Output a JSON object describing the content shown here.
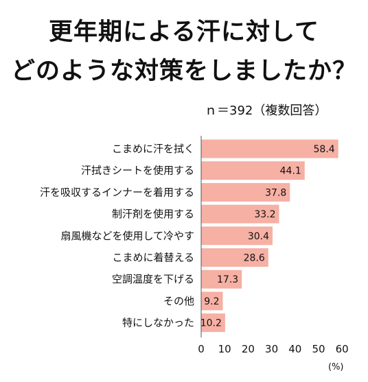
{
  "title_lines": [
    "更年期による汗に対して",
    "どのような対策をしましたか？"
  ],
  "subtitle": "ｎ＝392（複数回答）",
  "unit": "(%)",
  "colors": {
    "bar": "#f6b0a4",
    "axis": "#555555",
    "text": "#111111"
  },
  "chart_data": {
    "type": "bar",
    "orientation": "horizontal",
    "categories": [
      "こまめに汗を拭く",
      "汗拭きシートを使用する",
      "汗を吸収するインナーを着用する",
      "制汗剤を使用する",
      "扇風機などを使用して冷やす",
      "こまめに着替える",
      "空調温度を下げる",
      "その他",
      "特にしなかった"
    ],
    "values": [
      58.4,
      44.1,
      37.8,
      33.2,
      30.4,
      28.6,
      17.3,
      9.2,
      10.2
    ],
    "value_labels": [
      "58.4",
      "44.1",
      "37.8",
      "33.2",
      "30.4",
      "28.6",
      "17.3",
      "9.2",
      "10.2"
    ],
    "xlim": [
      0,
      60
    ],
    "xticks": [
      "0",
      "10",
      "20",
      "30",
      "40",
      "50",
      "60"
    ],
    "grid": false
  }
}
